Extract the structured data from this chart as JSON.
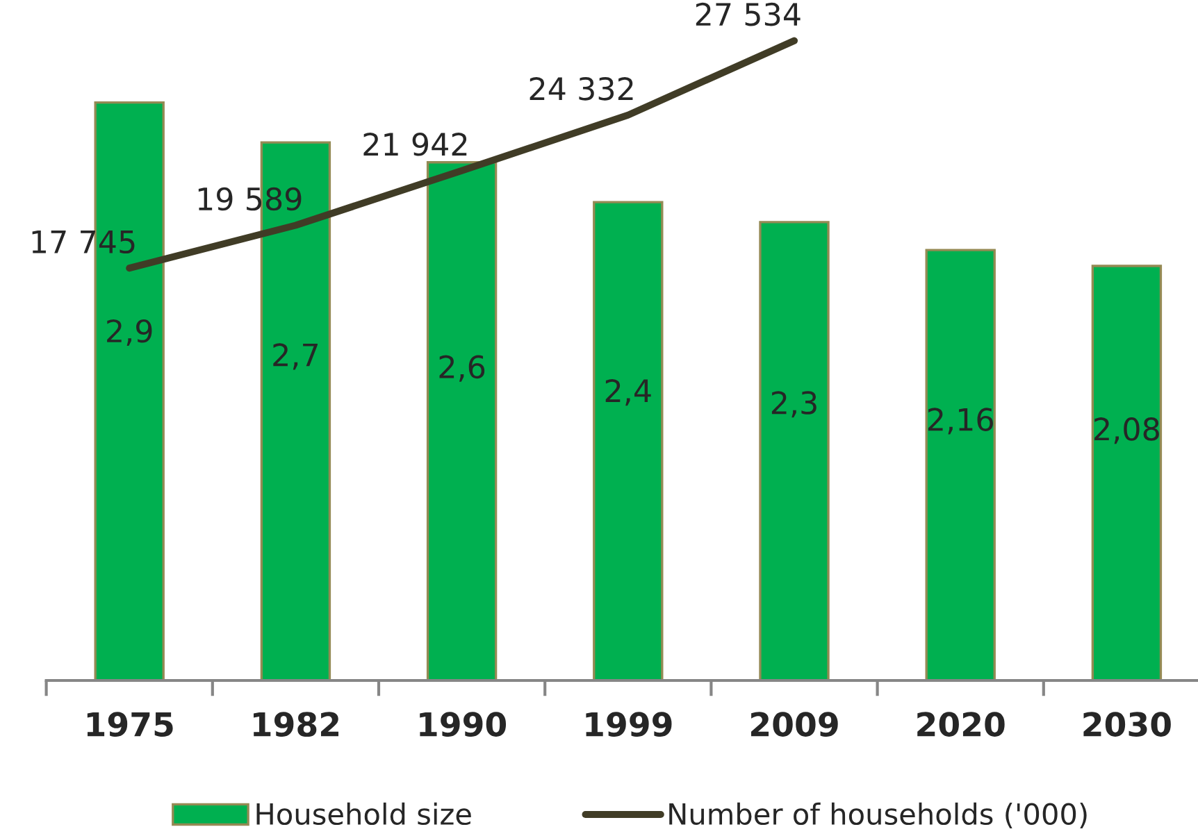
{
  "chart_data": {
    "type": "bar",
    "categories": [
      "1975",
      "1982",
      "1990",
      "1999",
      "2009",
      "2020",
      "2030"
    ],
    "series": [
      {
        "name": "Household size",
        "color": "#00b050",
        "values": [
          2.9,
          2.7,
          2.6,
          2.4,
          2.3,
          2.16,
          2.08
        ],
        "value_labels": [
          "2,9",
          "2,7",
          "2,6",
          "2,4",
          "2,3",
          "2,16",
          "2,08"
        ]
      },
      {
        "name": "Number of households ('000)",
        "type": "line",
        "axis": "y2",
        "color": "#403c26",
        "values": [
          17745,
          19589,
          21942,
          24332,
          27534,
          null,
          null
        ],
        "value_labels": [
          "17 745",
          "19 589",
          "21 942",
          "24 332",
          "27 534",
          null,
          null
        ]
      }
    ],
    "tick_labels": "x",
    "legend": "bottom"
  }
}
